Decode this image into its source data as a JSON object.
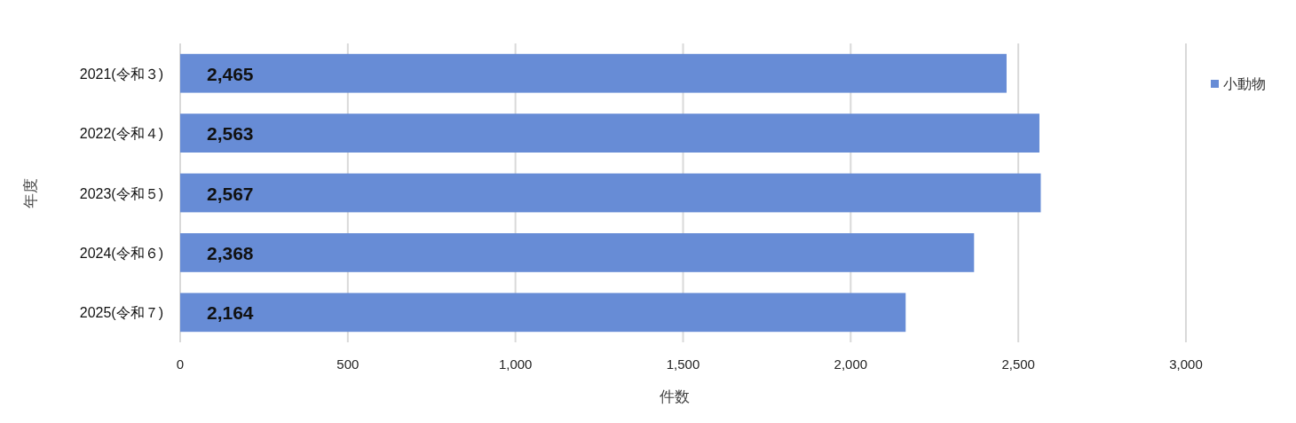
{
  "chart_data": {
    "type": "bar",
    "orientation": "horizontal",
    "xlabel": "件数",
    "ylabel": "年度",
    "categories": [
      "2021(令和３)",
      "2022(令和４)",
      "2023(令和５)",
      "2024(令和６)",
      "2025(令和７)"
    ],
    "series": [
      {
        "name": "小動物",
        "color": "#678cd6",
        "values": [
          2465,
          2563,
          2567,
          2368,
          2164
        ],
        "value_labels": [
          "2,465",
          "2,563",
          "2,567",
          "2,368",
          "2,164"
        ]
      }
    ],
    "xlim": [
      0,
      3000
    ],
    "xticks": [
      0,
      500,
      {
        "value": 1000,
        "label": "1,000"
      },
      {
        "value": 1500,
        "label": "1,500"
      },
      {
        "value": 2000,
        "label": "2,000"
      },
      {
        "value": 2500,
        "label": "2,500"
      },
      {
        "value": 3000,
        "label": "3,000"
      }
    ],
    "grid": "x",
    "legend": "top right"
  }
}
